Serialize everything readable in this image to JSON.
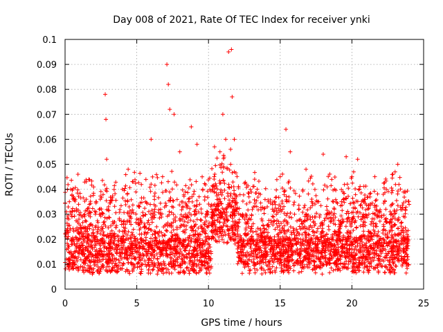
{
  "chart_data": {
    "type": "scatter",
    "title": "Day 008 of 2021, Rate Of TEC Index for receiver ynki",
    "xlabel": "GPS time / hours",
    "ylabel": "ROTI / TECUs",
    "xlim": [
      0,
      25
    ],
    "ylim": [
      0,
      0.1
    ],
    "xticks": [
      0,
      5,
      10,
      15,
      20,
      25
    ],
    "xtick_labels": [
      "0",
      "5",
      "10",
      "15",
      "20",
      "25"
    ],
    "yticks": [
      0,
      0.01,
      0.02,
      0.03,
      0.04,
      0.05,
      0.06,
      0.07,
      0.08,
      0.09,
      0.1
    ],
    "ytick_labels": [
      "0",
      "0.01",
      "0.02",
      "0.03",
      "0.04",
      "0.05",
      "0.06",
      "0.07",
      "0.08",
      "0.09",
      "0.1"
    ],
    "grid": true,
    "marker": "+",
    "color": "#ff0000",
    "series": [
      {
        "name": "ROTI",
        "x": [
          0.1,
          0.3,
          0.5,
          0.9,
          1.2,
          1.6,
          2.0,
          2.4,
          2.8,
          2.85,
          2.9,
          3.2,
          3.6,
          4.0,
          4.4,
          4.8,
          5.2,
          5.6,
          6.0,
          6.4,
          6.8,
          7.1,
          7.2,
          7.3,
          7.6,
          8.0,
          8.4,
          8.8,
          9.2,
          9.6,
          10.0,
          10.4,
          10.8,
          11.0,
          11.2,
          11.4,
          11.6,
          11.65,
          11.8,
          12.2,
          12.6,
          13.0,
          13.4,
          13.8,
          14.2,
          14.6,
          15.0,
          15.4,
          15.7,
          16.0,
          16.4,
          16.8,
          17.2,
          17.6,
          18.0,
          18.4,
          18.8,
          19.2,
          19.6,
          20.0,
          20.4,
          20.8,
          21.2,
          21.6,
          22.0,
          22.4,
          22.8,
          23.2,
          23.6,
          23.9
        ],
        "y": [
          0.012,
          0.035,
          0.018,
          0.046,
          0.014,
          0.025,
          0.011,
          0.03,
          0.078,
          0.068,
          0.052,
          0.02,
          0.015,
          0.04,
          0.048,
          0.013,
          0.022,
          0.035,
          0.06,
          0.018,
          0.045,
          0.09,
          0.082,
          0.072,
          0.07,
          0.055,
          0.03,
          0.065,
          0.058,
          0.04,
          0.012,
          0.045,
          0.055,
          0.07,
          0.06,
          0.095,
          0.096,
          0.077,
          0.06,
          0.02,
          0.03,
          0.015,
          0.04,
          0.012,
          0.025,
          0.035,
          0.045,
          0.064,
          0.055,
          0.03,
          0.018,
          0.048,
          0.02,
          0.035,
          0.054,
          0.012,
          0.04,
          0.025,
          0.053,
          0.045,
          0.052,
          0.03,
          0.015,
          0.045,
          0.02,
          0.04,
          0.025,
          0.05,
          0.018,
          0.013
        ]
      }
    ]
  }
}
